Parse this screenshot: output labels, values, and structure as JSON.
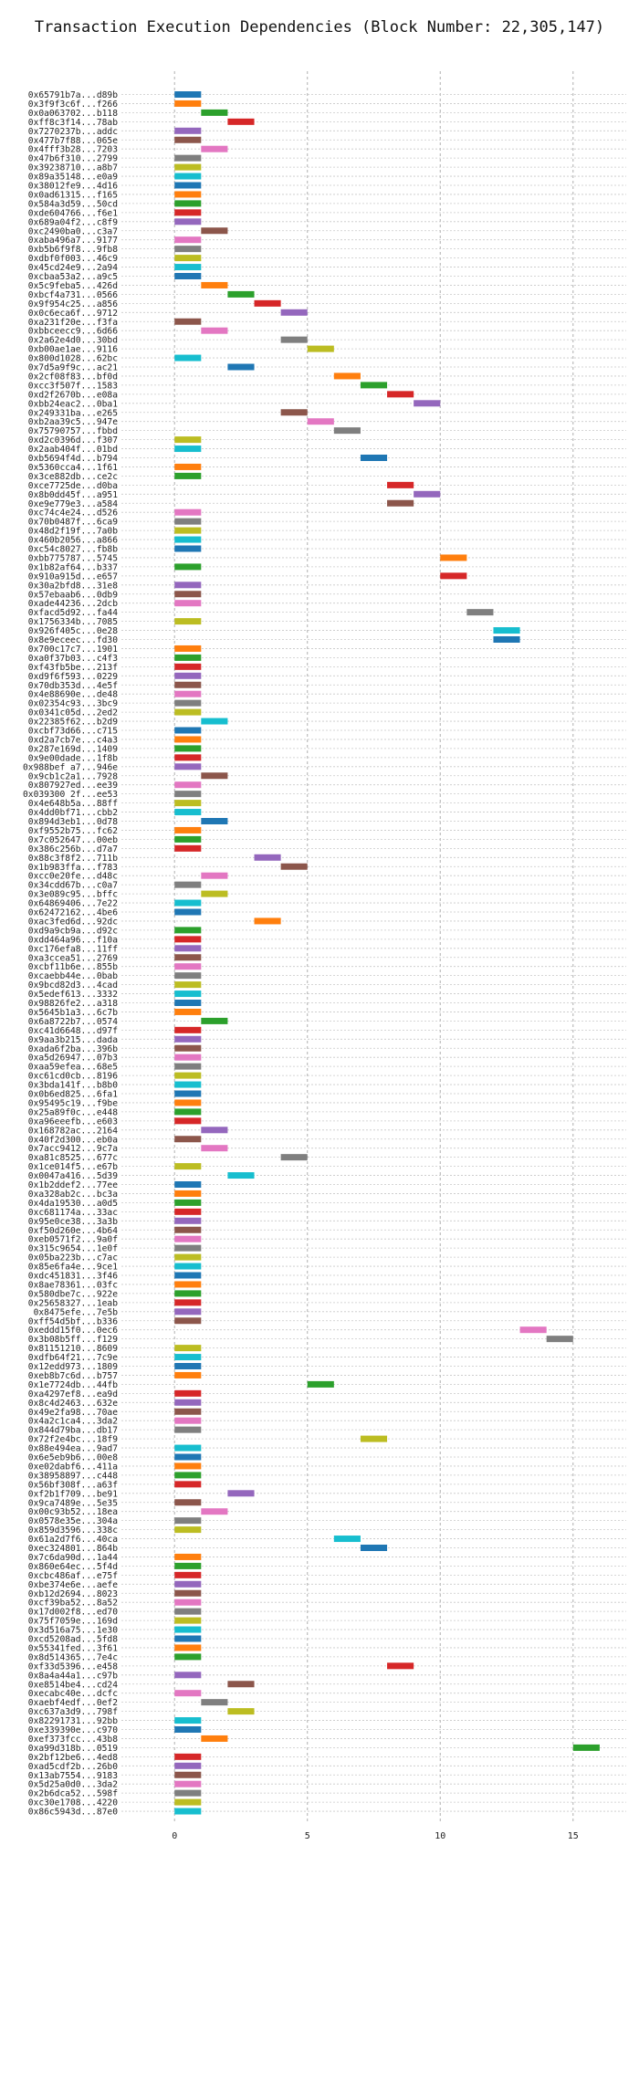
{
  "chart_data": {
    "type": "gantt",
    "title": "Transaction Execution Dependencies (Block Number: 22,305,147)",
    "xlabel": "",
    "ylabel": "",
    "xlim": [
      -2,
      17
    ],
    "xticks": [
      0,
      5,
      10,
      15
    ],
    "grid": true,
    "palette": [
      "#1f77b4",
      "#ff7f0e",
      "#2ca02c",
      "#d62728",
      "#9467bd",
      "#8c564b",
      "#e377c2",
      "#7f7f7f",
      "#bcbd22",
      "#17becf"
    ],
    "transactions": [
      {
        "label": "0x65791b7a...d89b",
        "start": 0
      },
      {
        "label": "0x3f9f3c6f...f266",
        "start": 0
      },
      {
        "label": "0x0a063702...b118",
        "start": 1
      },
      {
        "label": "0xff8c3f14...78ab",
        "start": 2
      },
      {
        "label": "0x7270237b...addc",
        "start": 0
      },
      {
        "label": "0x477b7f88...065e",
        "start": 0
      },
      {
        "label": "0x4fff3b28...7203",
        "start": 1
      },
      {
        "label": "0x47b6f310...2799",
        "start": 0
      },
      {
        "label": "0x39238710...a8b7",
        "start": 0
      },
      {
        "label": "0x89a35148...e0a9",
        "start": 0
      },
      {
        "label": "0x38012fe9...4d16",
        "start": 0
      },
      {
        "label": "0x0ad61315...f165",
        "start": 0
      },
      {
        "label": "0x584a3d59...50cd",
        "start": 0
      },
      {
        "label": "0xde604766...f6e1",
        "start": 0
      },
      {
        "label": "0x689a04f2...c8f9",
        "start": 0
      },
      {
        "label": "0xc2490ba0...c3a7",
        "start": 1
      },
      {
        "label": "0xaba496a7...9177",
        "start": 0
      },
      {
        "label": "0xb5b6f9f8...9fb8",
        "start": 0
      },
      {
        "label": "0xdbf0f003...46c9",
        "start": 0
      },
      {
        "label": "0x45cd24e9...2a94",
        "start": 0
      },
      {
        "label": "0xcbaa53a2...a9c5",
        "start": 0
      },
      {
        "label": "0x5c9feba5...426d",
        "start": 1
      },
      {
        "label": "0xbcf4a731...0566",
        "start": 2
      },
      {
        "label": "0x9f954c25...a856",
        "start": 3
      },
      {
        "label": "0x0c6eca6f...9712",
        "start": 4
      },
      {
        "label": "0xa231f20e...f3fa",
        "start": 0
      },
      {
        "label": "0xbbceecc9...6d66",
        "start": 1
      },
      {
        "label": "0x2a62e4d0...30bd",
        "start": 4
      },
      {
        "label": "0xb00ae1ae...9116",
        "start": 5
      },
      {
        "label": "0x800d1028...62bc",
        "start": 0
      },
      {
        "label": "0x7d5a9f9c...ac21",
        "start": 2
      },
      {
        "label": "0x2cf08f83...bf0d",
        "start": 6
      },
      {
        "label": "0xcc3f507f...1583",
        "start": 7
      },
      {
        "label": "0xd2f2670b...e08a",
        "start": 8
      },
      {
        "label": "0xbb24eac2...0ba1",
        "start": 9
      },
      {
        "label": "0x249331ba...e265",
        "start": 4
      },
      {
        "label": "0xb2aa39c5...947e",
        "start": 5
      },
      {
        "label": "0x75790757...fbbd",
        "start": 6
      },
      {
        "label": "0xd2c0396d...f307",
        "start": 0
      },
      {
        "label": "0x2aab404f...01bd",
        "start": 0
      },
      {
        "label": "0xb5694f4d...b794",
        "start": 7
      },
      {
        "label": "0x5360cca4...1f61",
        "start": 0
      },
      {
        "label": "0x3ce882db...ce2c",
        "start": 0
      },
      {
        "label": "0xce7725de...d0ba",
        "start": 8
      },
      {
        "label": "0x8b0dd45f...a951",
        "start": 9
      },
      {
        "label": "0xe9e779e3...a584",
        "start": 8
      },
      {
        "label": "0xc74c4e24...d526",
        "start": 0
      },
      {
        "label": "0x70b0487f...6ca9",
        "start": 0
      },
      {
        "label": "0x48d2f19f...7a0b",
        "start": 0
      },
      {
        "label": "0x460b2056...a866",
        "start": 0
      },
      {
        "label": "0xc54c8027...fb8b",
        "start": 0
      },
      {
        "label": "0xbb775787...5745",
        "start": 10
      },
      {
        "label": "0x1b82af64...b337",
        "start": 0
      },
      {
        "label": "0x910a915d...e657",
        "start": 10
      },
      {
        "label": "0x30a2bfd8...31e8",
        "start": 0
      },
      {
        "label": "0x57ebaab6...0db9",
        "start": 0
      },
      {
        "label": "0xade44236...2dcb",
        "start": 0
      },
      {
        "label": "0xfacd5d92...fa44",
        "start": 11
      },
      {
        "label": "0x1756334b...7085",
        "start": 0
      },
      {
        "label": "0x926f405c...0e28",
        "start": 12
      },
      {
        "label": "0x8e9eceec...fd30",
        "start": 12
      },
      {
        "label": "0x700c17c7...1901",
        "start": 0
      },
      {
        "label": "0xa0f37b03...c4f3",
        "start": 0
      },
      {
        "label": "0xf43fb5be...213f",
        "start": 0
      },
      {
        "label": "0xd9f6f593...0229",
        "start": 0
      },
      {
        "label": "0x70db353d...4e5f",
        "start": 0
      },
      {
        "label": "0x4e88690e...de48",
        "start": 0
      },
      {
        "label": "0x02354c93...3bc9",
        "start": 0
      },
      {
        "label": "0x0341c05d...2ed2",
        "start": 0
      },
      {
        "label": "0x22385f62...b2d9",
        "start": 1
      },
      {
        "label": "0xcbf73d66...c715",
        "start": 0
      },
      {
        "label": "0xd2a7cb7e...c4a3",
        "start": 0
      },
      {
        "label": "0x287e169d...1409",
        "start": 0
      },
      {
        "label": "0x9e00dade...1f8b",
        "start": 0
      },
      {
        "label": "0x988bef a7...946e",
        "start": 0
      },
      {
        "label": "0x9cb1c2a1...7928",
        "start": 1
      },
      {
        "label": "0x807927ed...ee39",
        "start": 0
      },
      {
        "label": "0x039300 2f...ee53",
        "start": 0
      },
      {
        "label": "0x4e648b5a...88ff",
        "start": 0
      },
      {
        "label": "0x4dd0bf71...cbb2",
        "start": 0
      },
      {
        "label": "0x894d3eb1...0d78",
        "start": 1
      },
      {
        "label": "0xf9552b75...fc62",
        "start": 0
      },
      {
        "label": "0x7c052647...00eb",
        "start": 0
      },
      {
        "label": "0x386c256b...d7a7",
        "start": 0
      },
      {
        "label": "0x88c3f8f2...711b",
        "start": 3
      },
      {
        "label": "0x1b983ffa...f783",
        "start": 4
      },
      {
        "label": "0xcc0e20fe...d48c",
        "start": 1
      },
      {
        "label": "0x34cdd67b...c0a7",
        "start": 0
      },
      {
        "label": "0x3e089c95...bffc",
        "start": 1
      },
      {
        "label": "0x64869406...7e22",
        "start": 0
      },
      {
        "label": "0x62472162...4be6",
        "start": 0
      },
      {
        "label": "0xac3fed6d...92dc",
        "start": 3
      },
      {
        "label": "0xd9a9cb9a...d92c",
        "start": 0
      },
      {
        "label": "0xdd464a96...f10a",
        "start": 0
      },
      {
        "label": "0xc176efa8...11ff",
        "start": 0
      },
      {
        "label": "0xa3ccea51...2769",
        "start": 0
      },
      {
        "label": "0xcbf11b6e...855b",
        "start": 0
      },
      {
        "label": "0xcaebb44e...0bab",
        "start": 0
      },
      {
        "label": "0x9bcd82d3...4cad",
        "start": 0
      },
      {
        "label": "0x5edef613...3332",
        "start": 0
      },
      {
        "label": "0x98826fe2...a318",
        "start": 0
      },
      {
        "label": "0x5645b1a3...6c7b",
        "start": 0
      },
      {
        "label": "0x6a8722b7...0574",
        "start": 1
      },
      {
        "label": "0xc41d6648...d97f",
        "start": 0
      },
      {
        "label": "0x9aa3b215...dada",
        "start": 0
      },
      {
        "label": "0xada6f2ba...396b",
        "start": 0
      },
      {
        "label": "0xa5d26947...07b3",
        "start": 0
      },
      {
        "label": "0xaa59efea...68e5",
        "start": 0
      },
      {
        "label": "0xc61cd0cb...8196",
        "start": 0
      },
      {
        "label": "0x3bda141f...b8b0",
        "start": 0
      },
      {
        "label": "0x0b6ed825...6fa1",
        "start": 0
      },
      {
        "label": "0x95495c19...f9be",
        "start": 0
      },
      {
        "label": "0x25a89f0c...e448",
        "start": 0
      },
      {
        "label": "0xa96eeefb...e603",
        "start": 0
      },
      {
        "label": "0x168782ac...2164",
        "start": 1
      },
      {
        "label": "0x40f2d300...eb0a",
        "start": 0
      },
      {
        "label": "0x7acc9412...9c7a",
        "start": 1
      },
      {
        "label": "0xa81c8525...677c",
        "start": 4
      },
      {
        "label": "0x1ce014f5...e67b",
        "start": 0
      },
      {
        "label": "0x0047a416...5d39",
        "start": 2
      },
      {
        "label": "0x1b2ddef2...77ee",
        "start": 0
      },
      {
        "label": "0xa328ab2c...bc3a",
        "start": 0
      },
      {
        "label": "0x4da19530...a0d5",
        "start": 0
      },
      {
        "label": "0xc681174a...33ac",
        "start": 0
      },
      {
        "label": "0x95e0ce38...3a3b",
        "start": 0
      },
      {
        "label": "0xf50d260e...4b64",
        "start": 0
      },
      {
        "label": "0xeb0571f2...9a0f",
        "start": 0
      },
      {
        "label": "0x315c9654...1e0f",
        "start": 0
      },
      {
        "label": "0x05ba223b...c7ac",
        "start": 0
      },
      {
        "label": "0x85e6fa4e...9ce1",
        "start": 0
      },
      {
        "label": "0xdc451831...3f46",
        "start": 0
      },
      {
        "label": "0x8ae78361...03fc",
        "start": 0
      },
      {
        "label": "0x580dbe7c...922e",
        "start": 0
      },
      {
        "label": "0x25658327...1eab",
        "start": 0
      },
      {
        "label": "0x8475efe...7e5b",
        "start": 0
      },
      {
        "label": "0xff54d5bf...b336",
        "start": 0
      },
      {
        "label": "0xeddd15f0...0ec6",
        "start": 13
      },
      {
        "label": "0x3b08b5ff...f129",
        "start": 14
      },
      {
        "label": "0x81151210...8609",
        "start": 0
      },
      {
        "label": "0xdfb64f21...7c9e",
        "start": 0
      },
      {
        "label": "0x12edd973...1809",
        "start": 0
      },
      {
        "label": "0xeb8b7c6d...b757",
        "start": 0
      },
      {
        "label": "0x1e7724db...44fb",
        "start": 5
      },
      {
        "label": "0xa4297ef8...ea9d",
        "start": 0
      },
      {
        "label": "0x8c4d2463...632e",
        "start": 0
      },
      {
        "label": "0x49e2fa98...70ae",
        "start": 0
      },
      {
        "label": "0x4a2c1ca4...3da2",
        "start": 0
      },
      {
        "label": "0x844d79ba...db17",
        "start": 0
      },
      {
        "label": "0x72f2e4bc...18f9",
        "start": 7
      },
      {
        "label": "0x88e494ea...9ad7",
        "start": 0
      },
      {
        "label": "0x6e5eb9b6...00e8",
        "start": 0
      },
      {
        "label": "0xe02dabf6...411a",
        "start": 0
      },
      {
        "label": "0x38958897...c448",
        "start": 0
      },
      {
        "label": "0x56bf308f...a63f",
        "start": 0
      },
      {
        "label": "0xf2b1f709...be91",
        "start": 2
      },
      {
        "label": "0x9ca7489e...5e35",
        "start": 0
      },
      {
        "label": "0x00c93b52...18ea",
        "start": 1
      },
      {
        "label": "0x0578e35e...304a",
        "start": 0
      },
      {
        "label": "0x859d3596...338c",
        "start": 0
      },
      {
        "label": "0x61a2d7f6...40ca",
        "start": 6
      },
      {
        "label": "0xec324801...864b",
        "start": 7
      },
      {
        "label": "0x7c6da90d...1a44",
        "start": 0
      },
      {
        "label": "0x860e64ec...5f4d",
        "start": 0
      },
      {
        "label": "0xcbc486af...e75f",
        "start": 0
      },
      {
        "label": "0xbe374e6e...aefe",
        "start": 0
      },
      {
        "label": "0xb12d2694...8023",
        "start": 0
      },
      {
        "label": "0xcf39ba52...8a52",
        "start": 0
      },
      {
        "label": "0x17d002f8...ed70",
        "start": 0
      },
      {
        "label": "0x75f7059e...169d",
        "start": 0
      },
      {
        "label": "0x3d516a75...1e30",
        "start": 0
      },
      {
        "label": "0xcd5208ad...5fd8",
        "start": 0
      },
      {
        "label": "0x55341fed...3f61",
        "start": 0
      },
      {
        "label": "0x8d514365...7e4c",
        "start": 0
      },
      {
        "label": "0xf33d5396...e458",
        "start": 8
      },
      {
        "label": "0x8a4a44a1...c97b",
        "start": 0
      },
      {
        "label": "0xe8514be4...cd24",
        "start": 2
      },
      {
        "label": "0xecabc40e...dcfc",
        "start": 0
      },
      {
        "label": "0xaebf4edf...0ef2",
        "start": 1
      },
      {
        "label": "0xc637a3d9...798f",
        "start": 2
      },
      {
        "label": "0x82291731...92bb",
        "start": 0
      },
      {
        "label": "0xe339390e...c970",
        "start": 0
      },
      {
        "label": "0xef373fcc...43b8",
        "start": 1
      },
      {
        "label": "0xa99d318b...0519",
        "start": 15
      },
      {
        "label": "0x2bf12be6...4ed8",
        "start": 0
      },
      {
        "label": "0xad5cdf2b...26b0",
        "start": 0
      },
      {
        "label": "0x13ab7554...9183",
        "start": 0
      },
      {
        "label": "0x5d25a0d0...3da2",
        "start": 0
      },
      {
        "label": "0x2b6dca52...598f",
        "start": 0
      },
      {
        "label": "0xc30e1708...4220",
        "start": 0
      },
      {
        "label": "0x86c5943d...87e0",
        "start": 0
      }
    ]
  }
}
